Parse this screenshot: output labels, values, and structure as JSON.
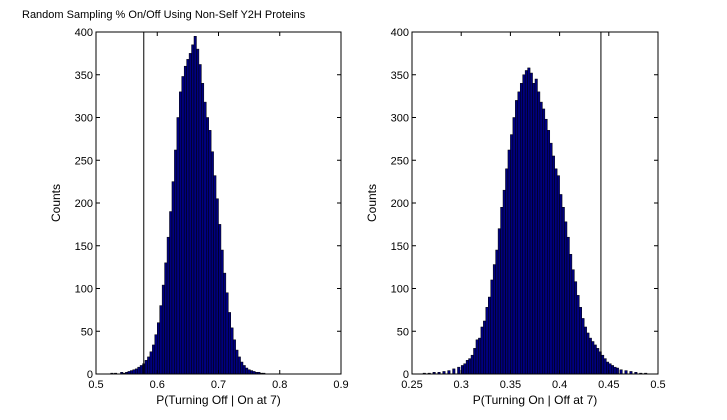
{
  "figure_title": "Random Sampling % On/Off Using Non-Self Y2H Proteins",
  "colors": {
    "bar_fill": "#00007f",
    "bar_edge": "#000000",
    "axes": "#000000",
    "background": "#ffffff"
  },
  "chart_data": [
    {
      "type": "bar",
      "title": "Random Sampling % On/Off Using Non-Self Y2H Proteins",
      "xlabel": "P(Turning Off | On at 7)",
      "ylabel": "Counts",
      "xlim": [
        0.5,
        0.9
      ],
      "ylim": [
        0,
        400
      ],
      "xticks": [
        0.5,
        0.6,
        0.7,
        0.8,
        0.9
      ],
      "xtick_labels": [
        "0.5",
        "0.6",
        "0.7",
        "0.8",
        "0.9"
      ],
      "yticks": [
        0,
        50,
        100,
        150,
        200,
        250,
        300,
        350,
        400
      ],
      "ytick_labels": [
        "0",
        "50",
        "100",
        "150",
        "200",
        "250",
        "300",
        "350",
        "400"
      ],
      "bin_width": 0.004,
      "bin_centers": [
        0.526,
        0.532,
        0.538,
        0.542,
        0.546,
        0.55,
        0.554,
        0.558,
        0.562,
        0.566,
        0.57,
        0.574,
        0.578,
        0.582,
        0.586,
        0.59,
        0.594,
        0.598,
        0.602,
        0.606,
        0.61,
        0.614,
        0.618,
        0.622,
        0.626,
        0.63,
        0.634,
        0.638,
        0.642,
        0.646,
        0.65,
        0.654,
        0.658,
        0.662,
        0.666,
        0.67,
        0.674,
        0.678,
        0.682,
        0.686,
        0.69,
        0.694,
        0.698,
        0.702,
        0.706,
        0.71,
        0.714,
        0.718,
        0.722,
        0.726,
        0.73,
        0.734,
        0.738,
        0.742,
        0.746,
        0.75,
        0.754,
        0.758,
        0.762,
        0.766,
        0.77,
        0.774
      ],
      "counts": [
        1,
        1,
        0,
        2,
        1,
        2,
        3,
        4,
        5,
        6,
        8,
        10,
        12,
        16,
        20,
        26,
        34,
        46,
        60,
        80,
        104,
        130,
        160,
        190,
        225,
        262,
        300,
        330,
        348,
        360,
        368,
        375,
        385,
        395,
        380,
        362,
        340,
        318,
        300,
        285,
        260,
        232,
        205,
        175,
        145,
        118,
        95,
        72,
        54,
        40,
        28,
        20,
        14,
        10,
        7,
        5,
        4,
        3,
        2,
        2,
        1,
        1
      ],
      "threshold_line": 0.578
    },
    {
      "type": "bar",
      "xlabel": "P(Turning On | Off at 7)",
      "ylabel": "Counts",
      "xlim": [
        0.25,
        0.5
      ],
      "ylim": [
        0,
        400
      ],
      "xticks": [
        0.25,
        0.3,
        0.35,
        0.4,
        0.45,
        0.5
      ],
      "xtick_labels": [
        "0.25",
        "0.3",
        "0.35",
        "0.4",
        "0.45",
        "0.5"
      ],
      "yticks": [
        0,
        50,
        100,
        150,
        200,
        250,
        300,
        350,
        400
      ],
      "ytick_labels": [
        "0",
        "50",
        "100",
        "150",
        "200",
        "250",
        "300",
        "350",
        "400"
      ],
      "bin_width": 0.0025,
      "bin_centers": [
        0.2625,
        0.2675,
        0.2725,
        0.2775,
        0.2825,
        0.2875,
        0.2925,
        0.2975,
        0.30125,
        0.30375,
        0.30625,
        0.30875,
        0.31125,
        0.31375,
        0.31625,
        0.31875,
        0.32125,
        0.32375,
        0.32625,
        0.32875,
        0.33125,
        0.33375,
        0.33625,
        0.33875,
        0.34125,
        0.34375,
        0.34625,
        0.34875,
        0.35125,
        0.35375,
        0.35625,
        0.35875,
        0.36125,
        0.36375,
        0.36625,
        0.36875,
        0.37125,
        0.37375,
        0.37625,
        0.37875,
        0.38125,
        0.38375,
        0.38625,
        0.38875,
        0.39125,
        0.39375,
        0.39625,
        0.39875,
        0.40125,
        0.40375,
        0.40625,
        0.40875,
        0.41125,
        0.41375,
        0.41625,
        0.41875,
        0.42125,
        0.42375,
        0.42625,
        0.42875,
        0.43125,
        0.43375,
        0.43625,
        0.43875,
        0.44125,
        0.44375,
        0.44625,
        0.44875,
        0.45125,
        0.45375,
        0.45625,
        0.45875,
        0.4625,
        0.4675,
        0.4725,
        0.4775,
        0.4825,
        0.4875
      ],
      "counts": [
        1,
        1,
        2,
        2,
        3,
        4,
        6,
        8,
        10,
        12,
        16,
        18,
        22,
        30,
        40,
        42,
        55,
        62,
        78,
        90,
        110,
        128,
        145,
        170,
        195,
        215,
        240,
        262,
        280,
        300,
        320,
        330,
        340,
        350,
        355,
        358,
        352,
        340,
        345,
        330,
        318,
        310,
        298,
        285,
        270,
        255,
        240,
        232,
        210,
        195,
        178,
        160,
        140,
        122,
        108,
        92,
        78,
        65,
        55,
        48,
        42,
        38,
        34,
        30,
        26,
        22,
        18,
        14,
        12,
        10,
        8,
        7,
        5,
        4,
        3,
        2,
        1,
        1
      ],
      "threshold_line": 0.442
    }
  ]
}
